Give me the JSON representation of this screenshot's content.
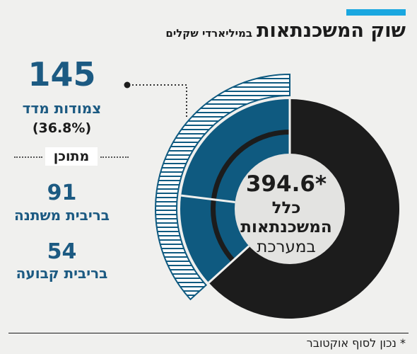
{
  "header": {
    "title": "שוק המשכנתאות",
    "subtitle": "במיליארדי שקלים"
  },
  "colors": {
    "accent": "#1aa7e0",
    "dark": "#1c1c1c",
    "blue": "#0f5a80",
    "text_blue": "#1c5a82",
    "center": "#e3e3e1"
  },
  "chart_data": {
    "type": "pie",
    "style": "donut",
    "total": 394.6,
    "total_label": "394.6*",
    "center_lines": [
      "כלל",
      "המשכנתאות",
      "במערכת"
    ],
    "slices": [
      {
        "label": "צמודות מדד",
        "value": 145,
        "share": "36.8%",
        "color": "#0f5a80"
      },
      {
        "label": "",
        "value": 249.6,
        "color": "#1c1c1c"
      }
    ],
    "breakdown_of": "צמודות מדד",
    "breakdown_connector": "מתוכן",
    "breakdown": [
      {
        "label": "בריבית משתנה",
        "value": 91
      },
      {
        "label": "בריבית קבועה",
        "value": 54
      }
    ]
  },
  "left_panel": {
    "indexed_value": "145",
    "indexed_label": "צמודות מדד",
    "indexed_share": "(36.8%)",
    "of_which": "מתוכן",
    "variable_value": "91",
    "variable_label": "בריבית משתנה",
    "fixed_value": "54",
    "fixed_label": "בריבית קבועה"
  },
  "center": {
    "total": "394.6*",
    "line1": "כלל",
    "line2": "המשכנתאות",
    "line3": "במערכת"
  },
  "footnote": "* נכון לסוף אוקטובר"
}
